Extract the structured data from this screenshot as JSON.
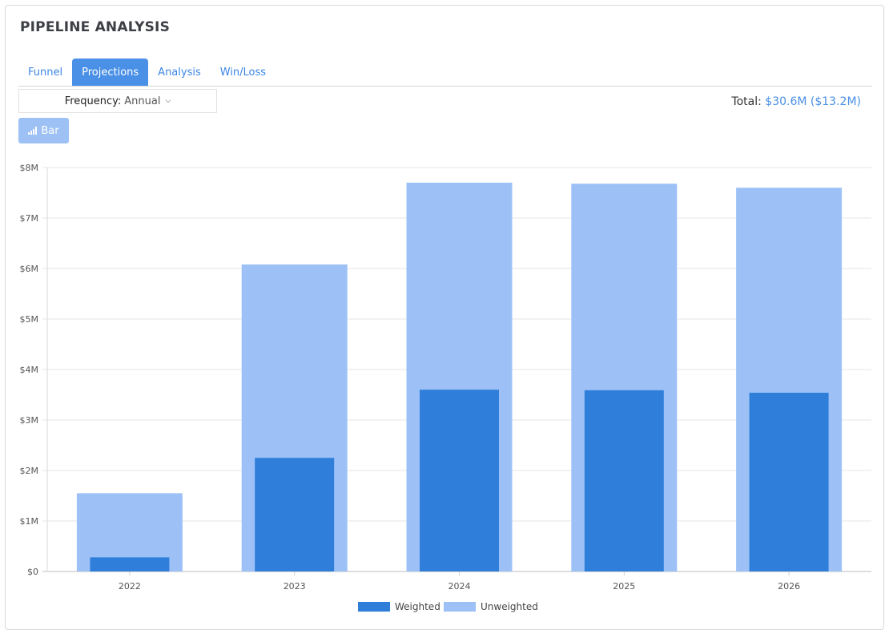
{
  "header": {
    "title": "PIPELINE ANALYSIS"
  },
  "tabs": [
    {
      "label": "Funnel",
      "active": false
    },
    {
      "label": "Projections",
      "active": true
    },
    {
      "label": "Analysis",
      "active": false
    },
    {
      "label": "Win/Loss",
      "active": false
    }
  ],
  "frequency": {
    "label": "Frequency:",
    "value": "Annual"
  },
  "total": {
    "label": "Total:",
    "value": "$30.6M ($13.2M)"
  },
  "view_button": {
    "label": "Bar",
    "icon": "bar-chart-icon"
  },
  "colors": {
    "weighted": "#2f7fda",
    "unweighted": "#9dc1f6",
    "accent": "#4a90e6"
  },
  "chart_data": {
    "type": "bar",
    "categories": [
      "2022",
      "2023",
      "2024",
      "2025",
      "2026"
    ],
    "series": [
      {
        "name": "Weighted",
        "values": [
          0.28,
          2.25,
          3.6,
          3.59,
          3.54
        ]
      },
      {
        "name": "Unweighted",
        "values": [
          1.55,
          6.08,
          7.7,
          7.68,
          7.6
        ]
      }
    ],
    "ylim": [
      0,
      8
    ],
    "yticks": [
      "$0",
      "$1M",
      "$2M",
      "$3M",
      "$4M",
      "$5M",
      "$6M",
      "$7M",
      "$8M"
    ],
    "xlabel": "",
    "ylabel": "",
    "grid": true,
    "legend": "bottom-center",
    "unit": "$M"
  }
}
